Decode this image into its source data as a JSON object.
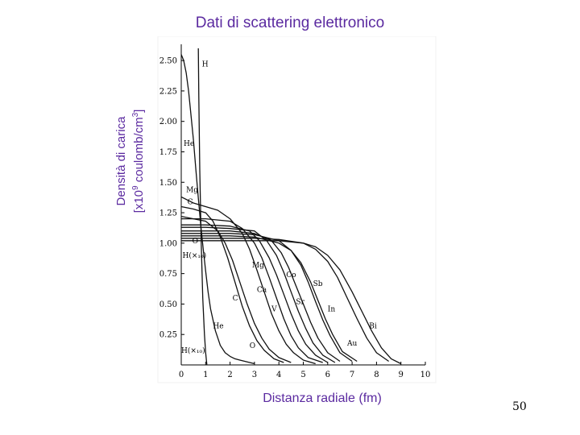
{
  "slide": {
    "title": "Dati di scattering elettronico",
    "page_number": "50"
  },
  "chart_data": {
    "type": "line",
    "title": "Dati di scattering elettronico",
    "ylabel_line1": "Densità di carica",
    "ylabel_line2": "[x10",
    "ylabel_exp": "9",
    "ylabel_unit": " coulomb/cm",
    "ylabel_unit_exp": "3",
    "ylabel_close": "]",
    "xlabel": "Distanza radiale (fm)",
    "xlim": [
      0,
      10
    ],
    "ylim": [
      0,
      2.6
    ],
    "x_ticks": [
      "0",
      "1",
      "2",
      "3",
      "4",
      "5",
      "6",
      "7",
      "8",
      "9",
      "10"
    ],
    "y_ticks": [
      "0.25",
      "0.50",
      "0.75",
      "1.00",
      "1.25",
      "1.50",
      "1.75",
      "2.00",
      "2.25",
      "2.50"
    ],
    "grid": false,
    "series": [
      {
        "name": "H",
        "x": [
          0.7,
          0.72,
          0.76,
          0.82,
          0.88,
          0.95,
          1.0,
          1.05
        ],
        "y": [
          2.6,
          2.2,
          1.6,
          1.0,
          0.55,
          0.25,
          0.1,
          0.0
        ]
      },
      {
        "name": "He",
        "x": [
          0,
          0.1,
          0.2,
          0.3,
          0.4,
          0.5,
          0.6,
          0.7,
          0.8,
          0.9,
          1.0,
          1.1,
          1.2,
          1.4,
          1.6,
          1.8,
          2.0,
          2.2,
          2.4,
          2.6,
          3.0
        ],
        "y": [
          2.55,
          2.5,
          2.4,
          2.25,
          2.05,
          1.85,
          1.6,
          1.37,
          1.15,
          0.95,
          0.77,
          0.6,
          0.46,
          0.28,
          0.16,
          0.1,
          0.07,
          0.05,
          0.04,
          0.03,
          0.01
        ]
      },
      {
        "name": "Mg",
        "x": [
          0,
          0.5,
          1.0,
          1.5,
          2.0,
          2.5,
          2.8,
          3.1,
          3.4,
          3.7,
          4.0,
          4.3,
          4.6,
          5.0,
          5.5
        ],
        "y": [
          1.38,
          1.33,
          1.3,
          1.27,
          1.2,
          1.08,
          0.95,
          0.78,
          0.6,
          0.42,
          0.28,
          0.17,
          0.1,
          0.04,
          0.01
        ]
      },
      {
        "name": "C",
        "x": [
          0,
          0.5,
          1.0,
          1.3,
          1.6,
          1.9,
          2.2,
          2.5,
          2.8,
          3.1,
          3.4,
          3.8,
          4.2
        ],
        "y": [
          1.3,
          1.28,
          1.25,
          1.18,
          1.05,
          0.88,
          0.68,
          0.48,
          0.32,
          0.2,
          0.12,
          0.05,
          0.02
        ]
      },
      {
        "name": "O",
        "x": [
          0,
          0.5,
          1.0,
          1.5,
          1.8,
          2.1,
          2.4,
          2.7,
          3.0,
          3.3,
          3.6,
          4.0,
          4.5
        ],
        "y": [
          1.22,
          1.2,
          1.18,
          1.1,
          1.0,
          0.86,
          0.68,
          0.5,
          0.34,
          0.22,
          0.13,
          0.06,
          0.02
        ]
      },
      {
        "name": "Ca",
        "x": [
          0,
          1.0,
          2.0,
          2.5,
          3.0,
          3.3,
          3.6,
          3.9,
          4.2,
          4.5,
          4.8,
          5.2,
          5.8
        ],
        "y": [
          1.2,
          1.2,
          1.18,
          1.12,
          1.0,
          0.88,
          0.72,
          0.55,
          0.38,
          0.24,
          0.14,
          0.06,
          0.02
        ]
      },
      {
        "name": "V",
        "x": [
          0,
          1.0,
          2.0,
          2.8,
          3.2,
          3.6,
          3.9,
          4.2,
          4.5,
          4.8,
          5.1,
          5.5,
          6.0
        ],
        "y": [
          1.15,
          1.15,
          1.14,
          1.1,
          1.02,
          0.88,
          0.74,
          0.58,
          0.42,
          0.28,
          0.17,
          0.08,
          0.02
        ]
      },
      {
        "name": "Co",
        "x": [
          0,
          1.0,
          2.0,
          3.0,
          3.5,
          3.9,
          4.2,
          4.5,
          4.8,
          5.1,
          5.4,
          5.8,
          6.3
        ],
        "y": [
          1.13,
          1.13,
          1.12,
          1.1,
          1.02,
          0.9,
          0.76,
          0.6,
          0.44,
          0.3,
          0.18,
          0.08,
          0.02
        ]
      },
      {
        "name": "Sr",
        "x": [
          0,
          1.0,
          2.0,
          3.0,
          3.7,
          4.1,
          4.4,
          4.7,
          5.0,
          5.3,
          5.6,
          6.0,
          6.5
        ],
        "y": [
          1.1,
          1.1,
          1.1,
          1.08,
          1.02,
          0.92,
          0.8,
          0.65,
          0.5,
          0.35,
          0.22,
          0.1,
          0.03
        ]
      },
      {
        "name": "Sb",
        "x": [
          0,
          1.0,
          2.0,
          3.0,
          4.0,
          4.5,
          4.9,
          5.2,
          5.5,
          5.8,
          6.1,
          6.5,
          7.0
        ],
        "y": [
          1.08,
          1.08,
          1.08,
          1.07,
          1.02,
          0.94,
          0.82,
          0.68,
          0.52,
          0.37,
          0.24,
          0.1,
          0.03
        ]
      },
      {
        "name": "In",
        "x": [
          0,
          1.0,
          2.0,
          3.0,
          4.0,
          4.5,
          4.9,
          5.3,
          5.6,
          5.9,
          6.2,
          6.6,
          7.2
        ],
        "y": [
          1.06,
          1.06,
          1.06,
          1.05,
          1.0,
          0.94,
          0.84,
          0.68,
          0.53,
          0.38,
          0.25,
          0.11,
          0.03
        ]
      },
      {
        "name": "Au",
        "x": [
          0,
          1.0,
          2.0,
          3.0,
          4.0,
          5.0,
          5.5,
          6.0,
          6.4,
          6.8,
          7.2,
          7.6,
          8.0,
          8.5
        ],
        "y": [
          1.04,
          1.04,
          1.04,
          1.04,
          1.03,
          1.0,
          0.95,
          0.85,
          0.72,
          0.55,
          0.38,
          0.22,
          0.1,
          0.03
        ]
      },
      {
        "name": "Bi",
        "x": [
          0,
          1.0,
          2.0,
          3.0,
          4.0,
          5.0,
          5.5,
          6.0,
          6.5,
          7.0,
          7.4,
          7.8,
          8.2,
          8.6,
          9.0
        ],
        "y": [
          1.02,
          1.02,
          1.02,
          1.02,
          1.02,
          1.0,
          0.97,
          0.9,
          0.78,
          0.6,
          0.44,
          0.28,
          0.14,
          0.05,
          0.01
        ]
      }
    ],
    "annotations": [
      {
        "text": "H",
        "x": 0.85,
        "y": 2.45
      },
      {
        "text": "He",
        "x": 0.1,
        "y": 1.8
      },
      {
        "text": "Mg",
        "x": 0.2,
        "y": 1.42
      },
      {
        "text": "C",
        "x": 0.25,
        "y": 1.32
      },
      {
        "text": "O",
        "x": 0.45,
        "y": 1.0
      },
      {
        "text": "H(×₁₀)",
        "x": 0.05,
        "y": 0.88
      },
      {
        "text": "Mg",
        "x": 2.9,
        "y": 0.8
      },
      {
        "text": "Co",
        "x": 4.3,
        "y": 0.72
      },
      {
        "text": "Sb",
        "x": 5.4,
        "y": 0.65
      },
      {
        "text": "Ca",
        "x": 3.1,
        "y": 0.6
      },
      {
        "text": "C",
        "x": 2.1,
        "y": 0.53
      },
      {
        "text": "Sr",
        "x": 4.7,
        "y": 0.5
      },
      {
        "text": "V",
        "x": 3.7,
        "y": 0.44
      },
      {
        "text": "In",
        "x": 6.0,
        "y": 0.44
      },
      {
        "text": "Bi",
        "x": 7.7,
        "y": 0.3
      },
      {
        "text": "He",
        "x": 1.3,
        "y": 0.3
      },
      {
        "text": "Au",
        "x": 6.8,
        "y": 0.16
      },
      {
        "text": "O",
        "x": 2.8,
        "y": 0.14
      },
      {
        "text": "H(×₁₀)",
        "x": 0.0,
        "y": 0.1
      }
    ]
  }
}
